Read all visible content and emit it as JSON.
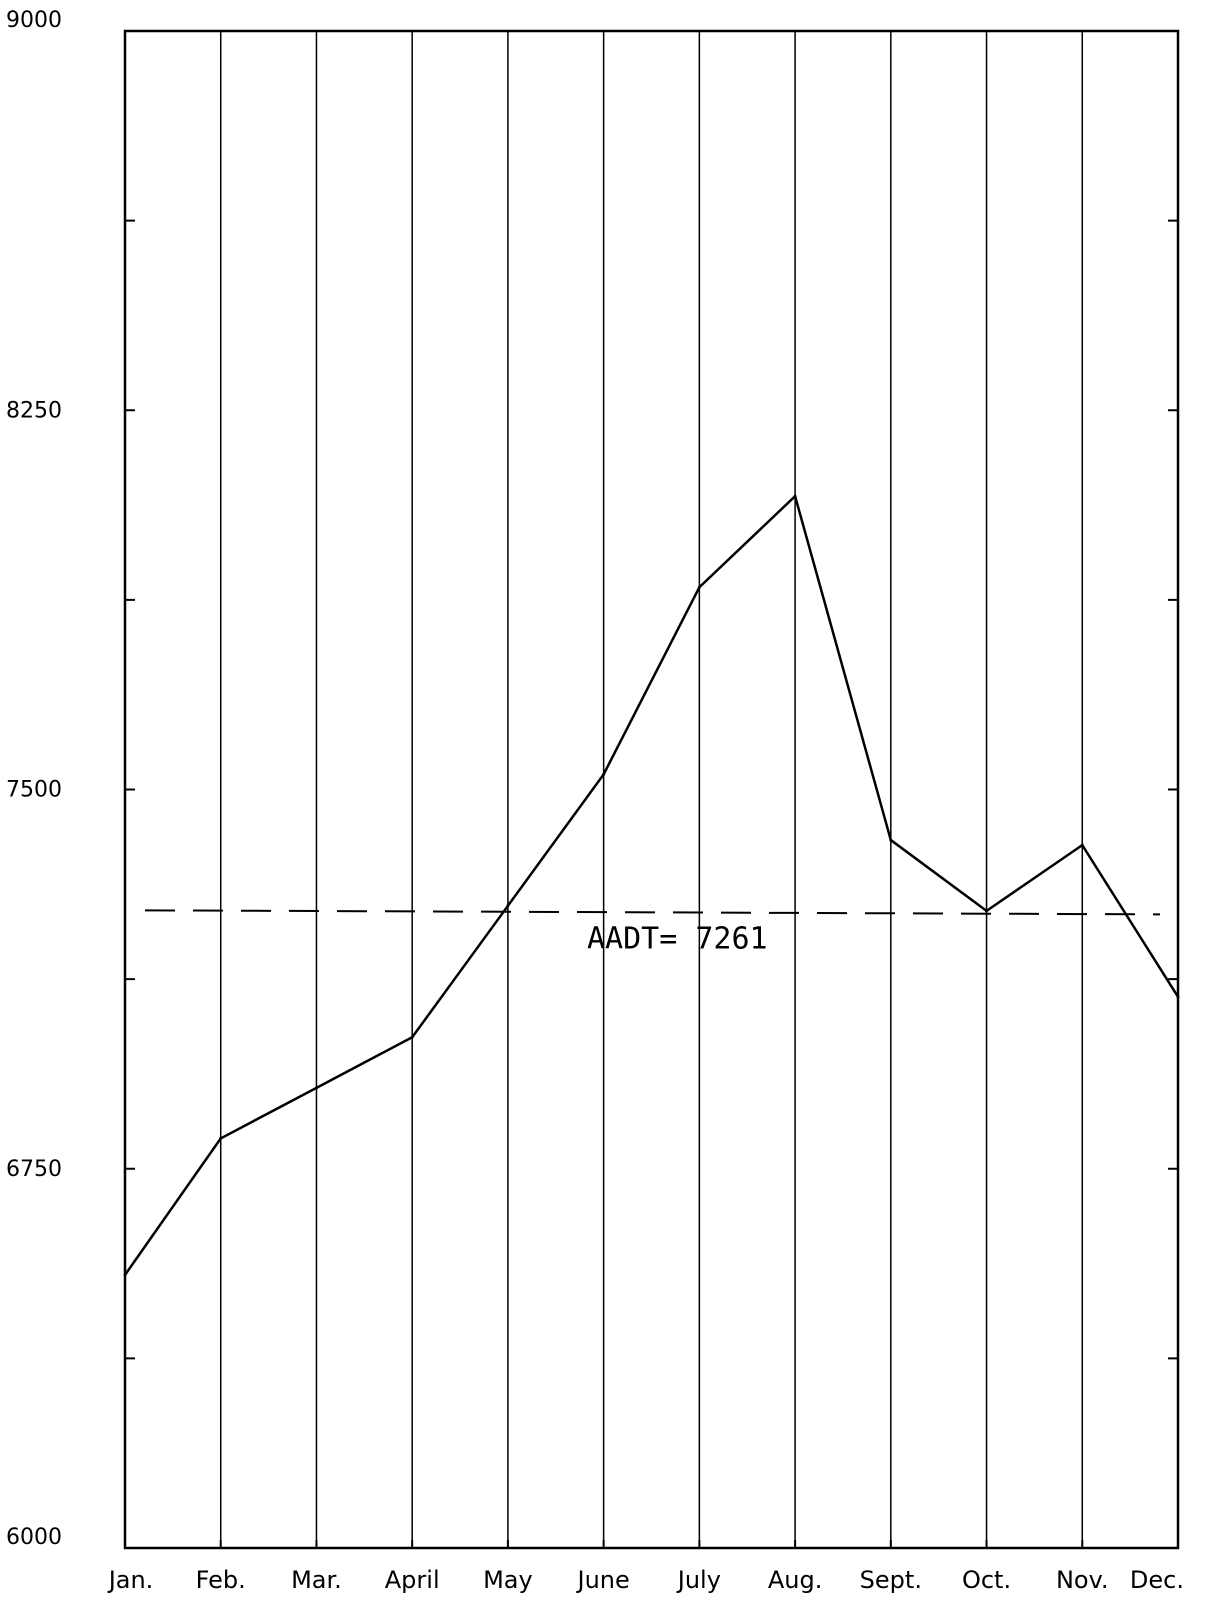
{
  "chart_data": {
    "type": "line",
    "title": "",
    "xlabel": "",
    "ylabel": "",
    "categories": [
      "Jan.",
      "Feb.",
      "Mar.",
      "April",
      "May",
      "June",
      "July",
      "Aug.",
      "Sept.",
      "Oct.",
      "Nov.",
      "Dec."
    ],
    "series": [
      {
        "values": [
          6540,
          6810,
          6910,
          7010,
          7270,
          7530,
          7900,
          8080,
          7400,
          7260,
          7390,
          7090
        ]
      }
    ],
    "ylim": [
      6000,
      9000
    ],
    "yticks": [
      6000,
      6750,
      7500,
      8250,
      9000
    ],
    "y_tick_labels": [
      "6000",
      "6750",
      "7500",
      "8250",
      "9000"
    ],
    "y_minor_ticks": [
      6375,
      7125,
      7875,
      8625
    ],
    "reference_line": {
      "value": 7261,
      "label": "AADT= 7261",
      "style": "dashed"
    },
    "grid": "vertical lines at each month",
    "legend": "none",
    "colors": {
      "line": "#000000",
      "background": "#ffffff"
    }
  }
}
